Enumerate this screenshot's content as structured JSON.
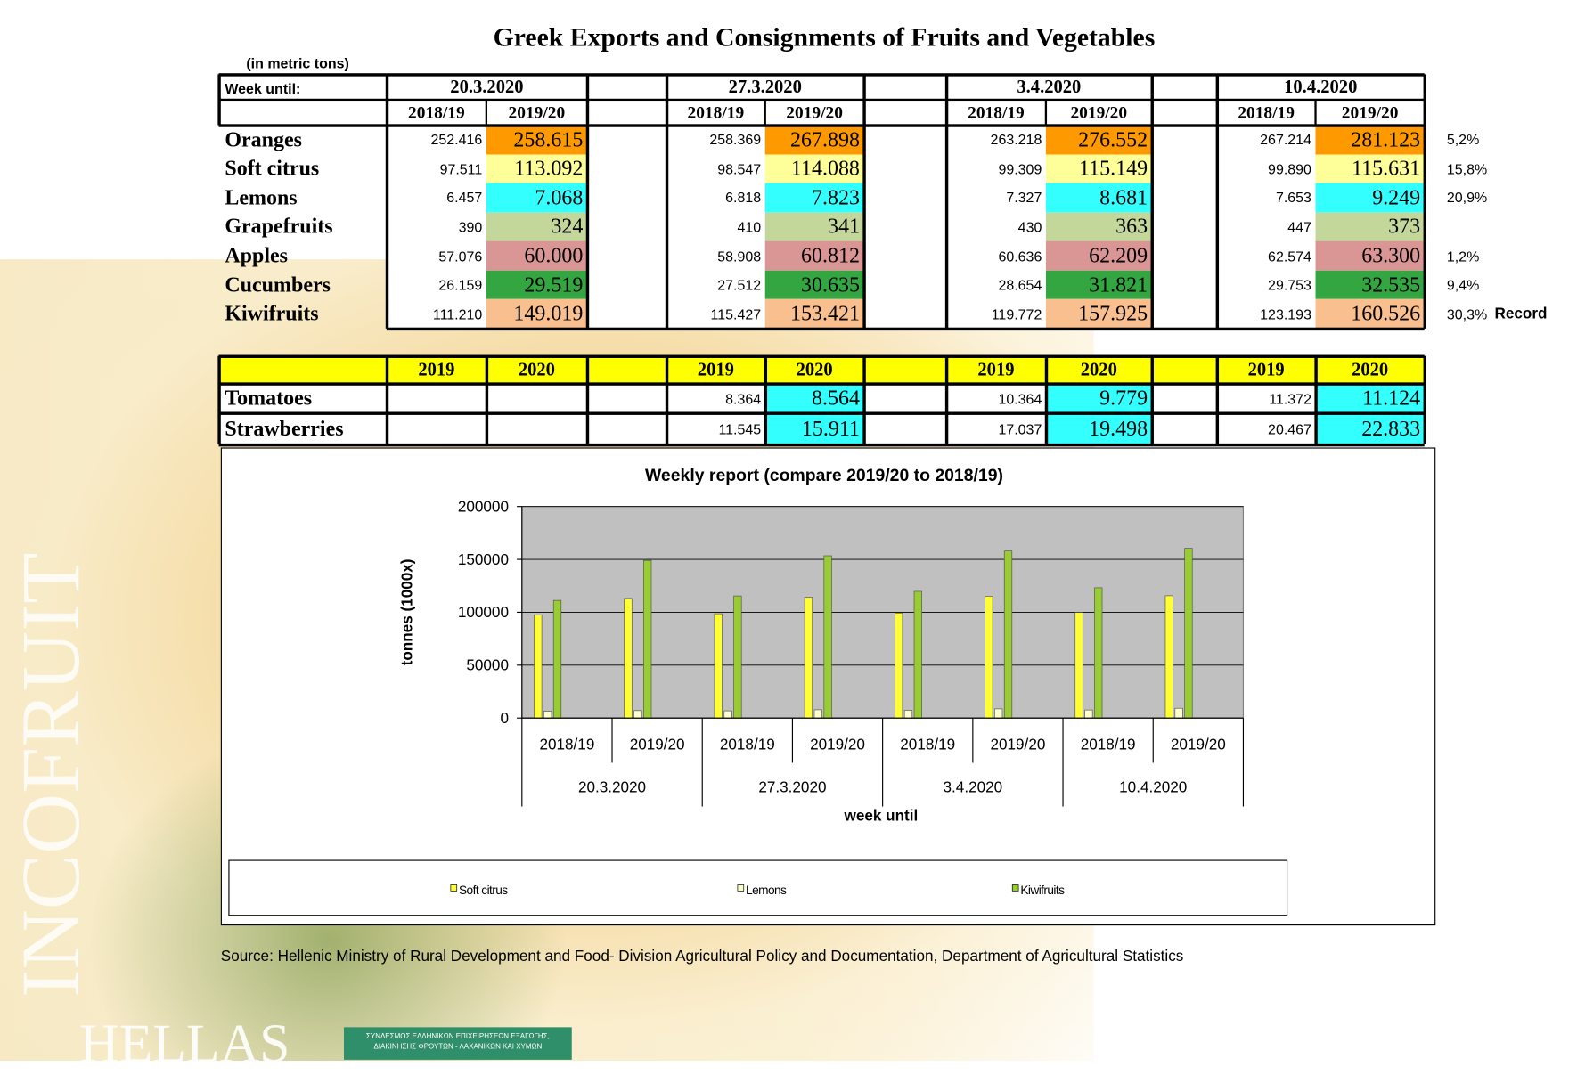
{
  "header": {
    "title": "Greek Exports and Consignments of Fruits and Vegetables",
    "unit_note": "(in metric tons)"
  },
  "table": {
    "corner": "Week until:",
    "weeks": [
      "20.3.2020",
      "27.3.2020",
      "3.4.2020",
      "10.4.2020"
    ],
    "seasons": [
      "2018/19",
      "2019/20"
    ],
    "rows": [
      {
        "label": "Oranges",
        "values": [
          "252.416",
          "258.615",
          "258.369",
          "267.898",
          "263.218",
          "276.552",
          "267.214",
          "281.123"
        ],
        "change": "5,2%",
        "highlight": "#ff9900"
      },
      {
        "label": "Soft citrus",
        "values": [
          "97.511",
          "113.092",
          "98.547",
          "114.088",
          "99.309",
          "115.149",
          "99.890",
          "115.631"
        ],
        "change": "15,8%",
        "highlight": "#ffff99"
      },
      {
        "label": "Lemons",
        "values": [
          "6.457",
          "7.068",
          "6.818",
          "7.823",
          "7.327",
          "8.681",
          "7.653",
          "9.249"
        ],
        "change": "20,9%",
        "highlight": "#33ffff"
      },
      {
        "label": "Grapefruits",
        "values": [
          "390",
          "324",
          "410",
          "341",
          "430",
          "363",
          "447",
          "373"
        ],
        "change": null,
        "highlight": "#c4d79b"
      },
      {
        "label": "Apples",
        "values": [
          "57.076",
          "60.000",
          "58.908",
          "60.812",
          "60.636",
          "62.209",
          "62.574",
          "63.300"
        ],
        "change": "1,2%",
        "highlight": "#da9694"
      },
      {
        "label": "Cucumbers",
        "values": [
          "26.159",
          "29.519",
          "27.512",
          "30.635",
          "28.654",
          "31.821",
          "29.753",
          "32.535"
        ],
        "change": "9,4%",
        "highlight": "#33a642"
      },
      {
        "label": "Kiwifruits",
        "values": [
          "111.210",
          "149.019",
          "115.427",
          "153.421",
          "119.772",
          "157.925",
          "123.193",
          "160.526"
        ],
        "change": "30,3%",
        "note": "Record",
        "highlight": "#fabf8f"
      }
    ]
  },
  "table2": {
    "years": [
      "2019",
      "2020"
    ],
    "header_color": "#ffff00",
    "highlight": "#33ffff",
    "rows": [
      {
        "label": "Tomatoes",
        "values": [
          null,
          null,
          "8.364",
          "8.564",
          "10.364",
          "9.779",
          "11.372",
          "11.124"
        ]
      },
      {
        "label": "Strawberries",
        "values": [
          null,
          null,
          "11.545",
          "15.911",
          "17.037",
          "19.498",
          "20.467",
          "22.833"
        ]
      }
    ]
  },
  "chart_data": {
    "type": "bar",
    "title": "Weekly report (compare 2019/20 to 2018/19)",
    "x_label": "week until",
    "y_label": "tonnes (1000x)",
    "categories": [
      "2018/19",
      "2019/20",
      "2018/19",
      "2019/20",
      "2018/19",
      "2019/20",
      "2018/19",
      "2019/20"
    ],
    "groups": [
      "20.3.2020",
      "27.3.2020",
      "3.4.2020",
      "10.4.2020"
    ],
    "series": [
      {
        "name": "Soft citrus",
        "color": "#ffff33",
        "values": [
          97511,
          113092,
          98547,
          114088,
          99309,
          115149,
          99890,
          115631
        ]
      },
      {
        "name": "Lemons",
        "color": "#ffffcc",
        "values": [
          6457,
          7068,
          6818,
          7823,
          7327,
          8681,
          7653,
          9249
        ]
      },
      {
        "name": "Kiwifruits",
        "color": "#99cc33",
        "values": [
          111210,
          149019,
          115427,
          153421,
          119772,
          157925,
          123193,
          160526
        ]
      }
    ],
    "ylim": [
      0,
      200000
    ],
    "yticks": [
      0,
      50000,
      100000,
      150000,
      200000
    ],
    "grid": true,
    "legend": "bottom"
  },
  "footer": {
    "source": "Source: Hellenic Ministry of Rural Development and Food- Division Agricultural Policy and Documentation, Department of Agricultural Statistics",
    "brand_vertical": "INCOFRUIT",
    "brand": "HELLAS",
    "logo_text": "ΣΥΝΔΕΣΜΟΣ ΕΛΛΗΝΙΚΩΝ ΕΠΙΧΕΙΡΗΣΕΩΝ ΕΞΑΓΩΓΗΣ, ΔΙΑΚΙΝΗΣΗΣ ΦΡΟΥΤΩΝ - ΛΑΧΑΝΙΚΩΝ ΚΑΙ ΧΥΜΩΝ"
  }
}
